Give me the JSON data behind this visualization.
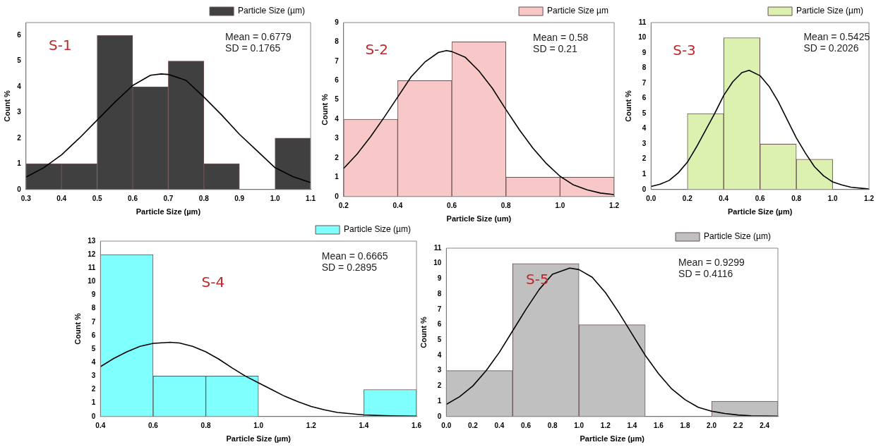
{
  "chart_data": [
    {
      "type": "histogram",
      "xlabel": "Particle Size (µm)",
      "ylabel": "Count %",
      "annotations": [
        "S-1",
        "Mean = 0.6779",
        "SD = 0.1765"
      ],
      "bins": [
        0.3,
        0.4,
        0.5,
        0.6,
        0.7,
        0.8,
        0.9,
        1.0,
        1.1
      ],
      "legend": "top right",
      "xlim": [
        0.3,
        1.1
      ],
      "xticks": [
        0.3,
        0.4,
        0.5,
        0.6,
        0.7,
        0.8,
        0.9,
        {
          "value": 1,
          "label": "1.0"
        },
        1.1
      ],
      "ylim": [
        0,
        6.5
      ],
      "yticks": [
        0,
        1,
        2,
        3,
        4,
        5,
        6
      ],
      "series": [
        {
          "name": "Particle Size (µm)",
          "color": "#404040",
          "values": [
            1,
            1,
            6,
            4,
            5,
            1,
            0,
            2
          ]
        },
        {
          "type": "line",
          "color": "#000000",
          "x": [
            0.3,
            0.35,
            0.4,
            0.45,
            0.5,
            0.55,
            0.6,
            0.65,
            0.68,
            0.7,
            0.75,
            0.8,
            0.85,
            0.9,
            0.95,
            1.0,
            1.05,
            1.1
          ],
          "values": [
            0.48,
            0.85,
            1.35,
            2.0,
            2.7,
            3.4,
            4.05,
            4.45,
            4.5,
            4.48,
            4.25,
            3.6,
            2.9,
            2.15,
            1.5,
            0.85,
            0.5,
            0.27
          ]
        }
      ]
    },
    {
      "type": "histogram",
      "xlabel": "Particle Size (um)",
      "ylabel": "Count %",
      "annotations": [
        "S-2",
        "Mean = 0.58",
        "SD = 0.21"
      ],
      "bins": [
        0.2,
        0.4,
        0.6,
        0.8,
        1.0,
        1.2
      ],
      "legend": "top right",
      "xlim": [
        0.2,
        1.2
      ],
      "xticks": [
        0.2,
        0.4,
        0.6,
        0.8,
        {
          "value": 1,
          "label": "1.0"
        },
        1.2
      ],
      "ylim": [
        0,
        9
      ],
      "yticks": [
        0,
        1,
        2,
        3,
        4,
        5,
        6,
        7,
        8,
        9
      ],
      "series": [
        {
          "name": "Particle Size µm",
          "color": "#f8c8c8",
          "values": [
            4,
            6,
            8,
            1,
            1
          ]
        },
        {
          "type": "line",
          "color": "#000000",
          "x": [
            0.2,
            0.25,
            0.3,
            0.35,
            0.4,
            0.45,
            0.5,
            0.55,
            0.58,
            0.6,
            0.65,
            0.7,
            0.75,
            0.8,
            0.85,
            0.9,
            0.95,
            1.0,
            1.05,
            1.1,
            1.15,
            1.2
          ],
          "values": [
            1.45,
            2.2,
            3.1,
            4.1,
            5.15,
            6.2,
            6.95,
            7.45,
            7.55,
            7.5,
            7.2,
            6.5,
            5.6,
            4.5,
            3.45,
            2.5,
            1.7,
            1.05,
            0.6,
            0.35,
            0.18,
            0.1
          ]
        }
      ]
    },
    {
      "type": "histogram",
      "xlabel": "Particle Size (µm)",
      "ylabel": "Count %",
      "annotations": [
        "S-3",
        "Mean = 0.5425",
        "SD = 0.2026"
      ],
      "bins": [
        0.2,
        0.4,
        0.6,
        0.8,
        1.0
      ],
      "legend": "top right",
      "xlim": [
        0,
        1.2
      ],
      "xticks": [
        {
          "value": 0,
          "label": "0.0"
        },
        0.2,
        0.4,
        0.6,
        0.8,
        {
          "value": 1,
          "label": "1.0"
        },
        1.2
      ],
      "ylim": [
        0,
        11
      ],
      "yticks": [
        0,
        1,
        2,
        3,
        4,
        5,
        6,
        7,
        8,
        9,
        10,
        11
      ],
      "series": [
        {
          "name": "Particle Size (µm)",
          "color": "#dcf0b0",
          "values": [
            5,
            10,
            3,
            2
          ]
        },
        {
          "type": "line",
          "color": "#000000",
          "x": [
            0,
            0.05,
            0.1,
            0.15,
            0.2,
            0.25,
            0.3,
            0.35,
            0.4,
            0.45,
            0.5,
            0.54,
            0.6,
            0.65,
            0.7,
            0.75,
            0.8,
            0.85,
            0.9,
            0.95,
            1.0,
            1.05,
            1.1,
            1.2
          ],
          "values": [
            0.2,
            0.35,
            0.6,
            1.1,
            1.8,
            2.8,
            3.9,
            5.0,
            6.2,
            7.1,
            7.7,
            7.85,
            7.5,
            6.8,
            5.8,
            4.6,
            3.4,
            2.4,
            1.5,
            0.9,
            0.5,
            0.3,
            0.15,
            0.03
          ]
        }
      ]
    },
    {
      "type": "histogram",
      "xlabel": "Particle Size (µm)",
      "ylabel": "Count %",
      "annotations": [
        "S-4",
        "Mean = 0.6665",
        "SD = 0.2895"
      ],
      "bins": [
        0.4,
        0.6,
        0.8,
        1.0,
        1.2,
        1.4,
        1.6
      ],
      "legend": "top right",
      "xlim": [
        0.4,
        1.6
      ],
      "xticks": [
        0.4,
        0.6,
        0.8,
        {
          "value": 1,
          "label": "1.0"
        },
        1.2,
        1.4,
        1.6
      ],
      "ylim": [
        0,
        13
      ],
      "yticks": [
        0,
        1,
        2,
        3,
        4,
        5,
        6,
        7,
        8,
        9,
        10,
        11,
        12,
        13
      ],
      "series": [
        {
          "name": "Particle Size (µm)",
          "color": "#80ffff",
          "values": [
            12,
            3,
            3,
            0,
            0,
            2
          ]
        },
        {
          "type": "line",
          "color": "#000000",
          "x": [
            0.4,
            0.45,
            0.5,
            0.55,
            0.6,
            0.665,
            0.7,
            0.75,
            0.8,
            0.85,
            0.9,
            0.95,
            1.0,
            1.05,
            1.1,
            1.15,
            1.2,
            1.25,
            1.3,
            1.4,
            1.5,
            1.6
          ],
          "values": [
            3.7,
            4.3,
            4.8,
            5.2,
            5.42,
            5.5,
            5.45,
            5.2,
            4.8,
            4.25,
            3.6,
            3.0,
            2.5,
            2.0,
            1.5,
            1.1,
            0.75,
            0.5,
            0.3,
            0.12,
            0.05,
            0.02
          ]
        }
      ]
    },
    {
      "type": "histogram",
      "xlabel": "Particle Size (µm)",
      "ylabel": "Count %",
      "annotations": [
        "S-5",
        "Mean = 0.9299",
        "SD = 0.4116"
      ],
      "bins": [
        0,
        0.5,
        1.0,
        1.5,
        2.0,
        2.5
      ],
      "legend": "top right",
      "xlim": [
        0,
        2.5
      ],
      "xticks": [
        {
          "value": 0,
          "label": "0.0"
        },
        0.2,
        0.4,
        0.6,
        0.8,
        {
          "value": 1,
          "label": "1.0"
        },
        1.2,
        1.4,
        1.6,
        1.8,
        {
          "value": 2,
          "label": "2.0"
        },
        2.2,
        2.4
      ],
      "ylim": [
        0,
        11
      ],
      "yticks": [
        0,
        1,
        2,
        3,
        4,
        5,
        6,
        7,
        8,
        9,
        10,
        11
      ],
      "series": [
        {
          "name": "Particle Size (µm)",
          "color": "#c0c0c0",
          "values": [
            3,
            10,
            6,
            0,
            1
          ]
        },
        {
          "type": "line",
          "color": "#000000",
          "x": [
            0,
            0.1,
            0.2,
            0.3,
            0.4,
            0.5,
            0.6,
            0.7,
            0.8,
            0.93,
            1.0,
            1.1,
            1.2,
            1.3,
            1.4,
            1.5,
            1.6,
            1.7,
            1.8,
            1.9,
            2.0,
            2.1,
            2.2,
            2.3,
            2.5
          ],
          "values": [
            0.8,
            1.3,
            2.0,
            3.0,
            4.2,
            5.6,
            7.0,
            8.3,
            9.3,
            9.7,
            9.6,
            9.1,
            8.1,
            6.8,
            5.4,
            4.0,
            2.8,
            1.8,
            1.1,
            0.6,
            0.35,
            0.2,
            0.1,
            0.05,
            0.02
          ]
        }
      ]
    }
  ]
}
